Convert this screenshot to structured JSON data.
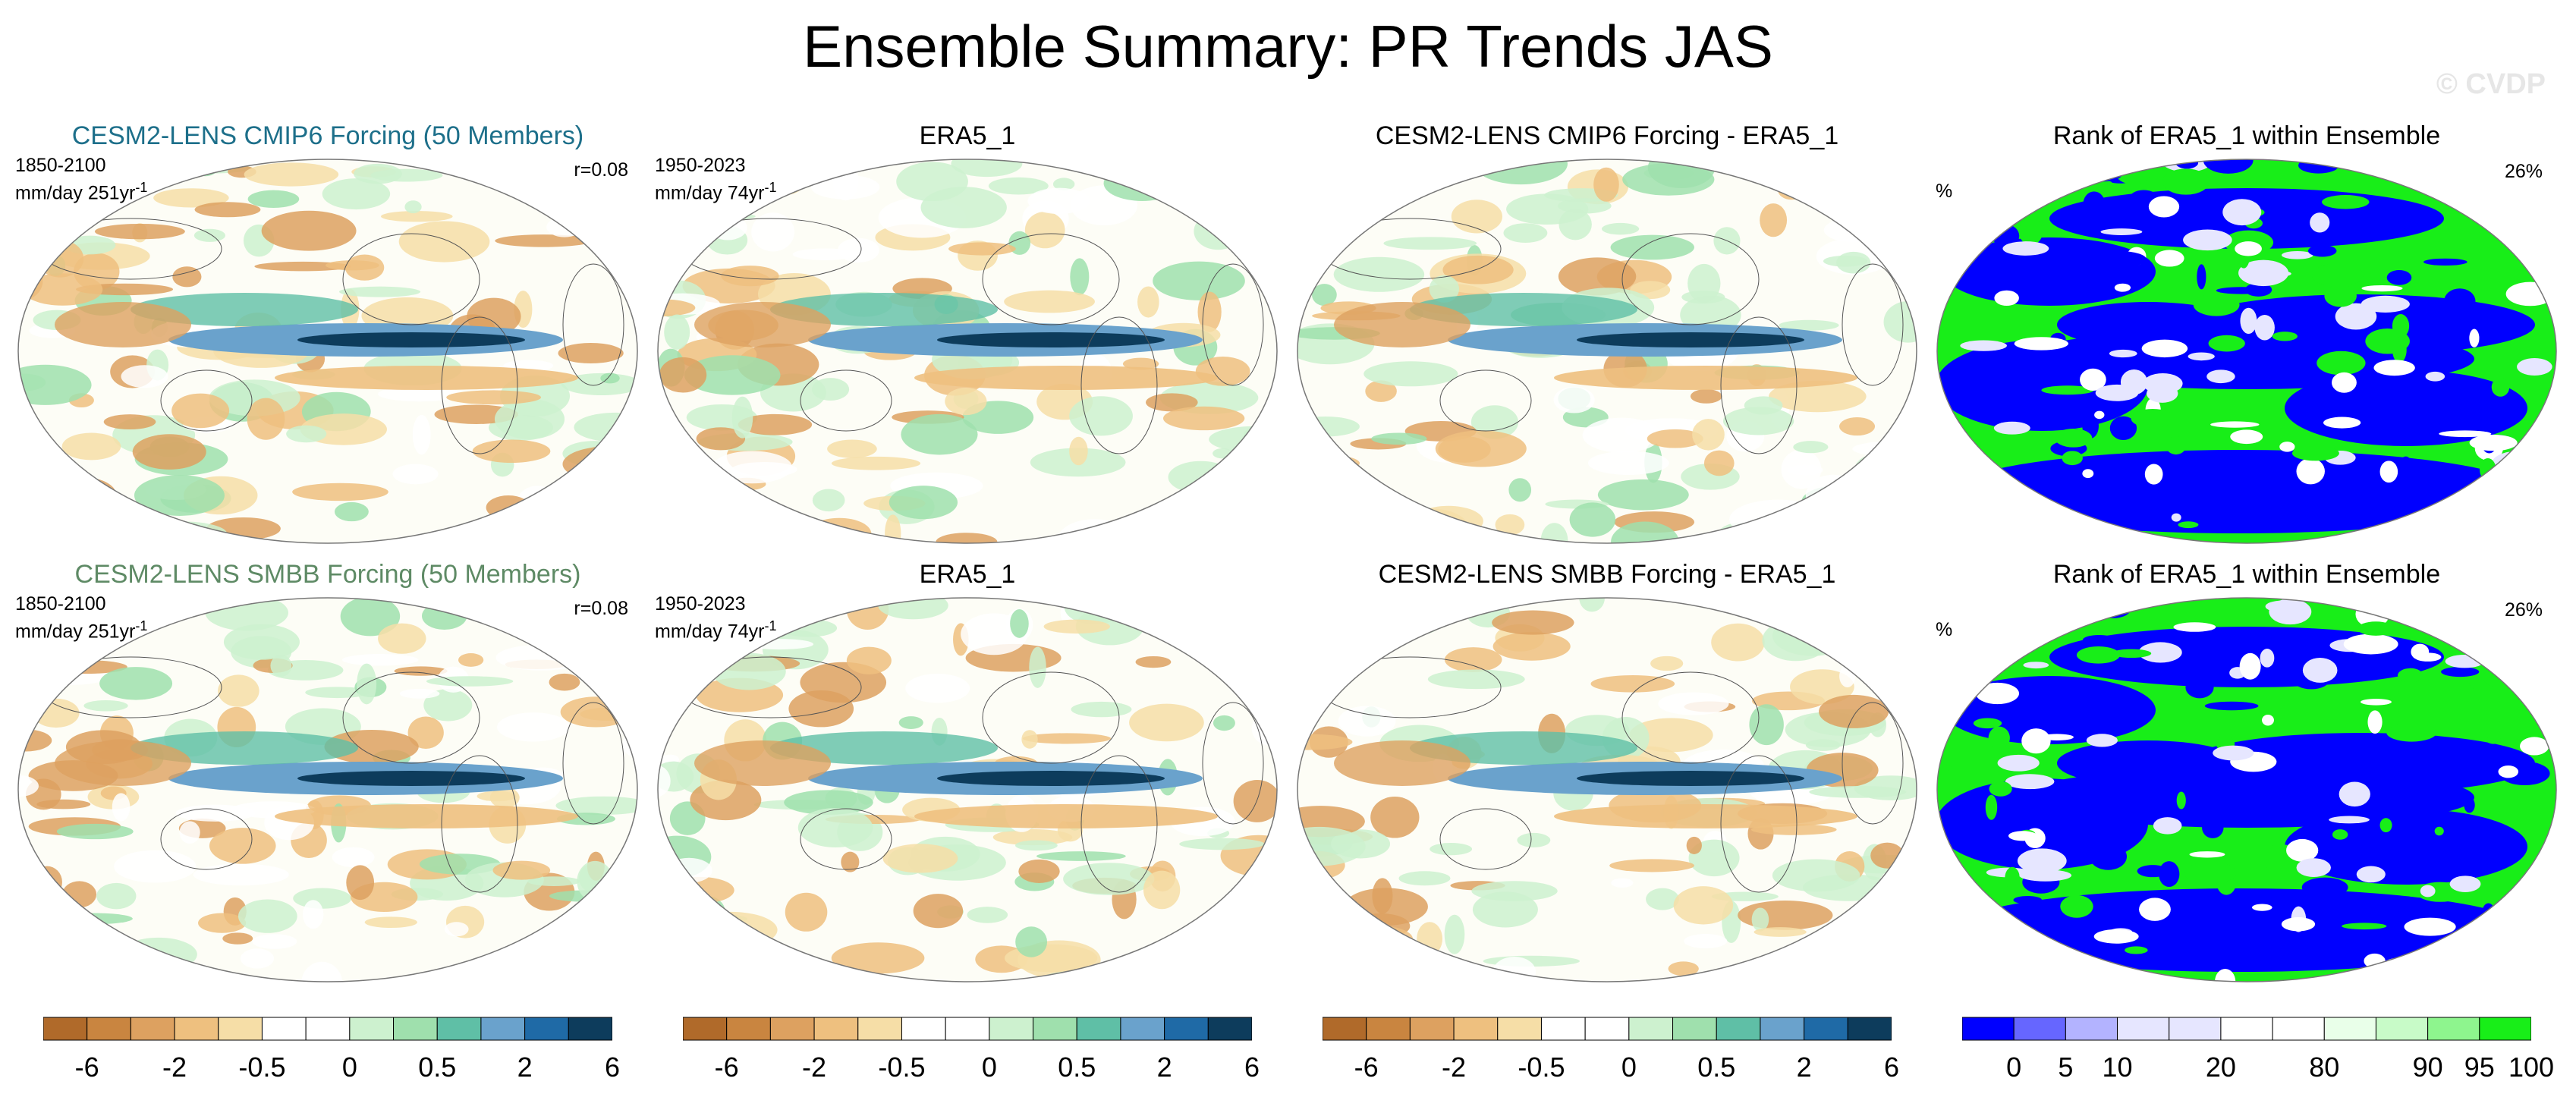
{
  "page": {
    "title": "Ensemble Summary: PR Trends JAS",
    "watermark": "© CVDP"
  },
  "rows": [
    {
      "panels": [
        {
          "title": "CESM2-LENS CMIP6 Forcing (50 Members)",
          "years": "1850-2100",
          "units": "mm/day 251yr",
          "units_sup": "-1",
          "corr": "r=0.08"
        },
        {
          "title": "ERA5_1",
          "years": "1950-2023",
          "units": "mm/day 74yr",
          "units_sup": "-1"
        },
        {
          "title": "CESM2-LENS CMIP6 Forcing - ERA5_1"
        },
        {
          "title": "Rank of ERA5_1 within Ensemble",
          "pct_symbol": "%",
          "pct_value": "26%"
        }
      ]
    },
    {
      "panels": [
        {
          "title": "CESM2-LENS SMBB Forcing (50 Members)",
          "years": "1850-2100",
          "units": "mm/day 251yr",
          "units_sup": "-1",
          "corr": "r=0.08"
        },
        {
          "title": "ERA5_1",
          "years": "1950-2023",
          "units": "mm/day 74yr",
          "units_sup": "-1"
        },
        {
          "title": "CESM2-LENS SMBB Forcing - ERA5_1"
        },
        {
          "title": "Rank of ERA5_1 within Ensemble",
          "pct_symbol": "%",
          "pct_value": "26%"
        }
      ]
    }
  ],
  "colorbars": {
    "trend": {
      "colors": [
        "#b06a2a",
        "#c98540",
        "#dda160",
        "#eec07f",
        "#f6dea7",
        "#ffffff",
        "#ffffff",
        "#cdf1cf",
        "#9fe0ad",
        "#5fbfa6",
        "#6aa2cc",
        "#1f6aa6",
        "#0d3c5c"
      ],
      "labels": [
        "-6",
        "-2",
        "-0.5",
        "0",
        "0.5",
        "2",
        "6"
      ],
      "label_positions": [
        1,
        3,
        5,
        7,
        9,
        11,
        13
      ]
    },
    "rank": {
      "colors": [
        "#0000ff",
        "#6666ff",
        "#b3b3ff",
        "#e6e6ff",
        "#e6e6ff",
        "#ffffff",
        "#ffffff",
        "#e9ffe9",
        "#c8fbc8",
        "#8ef58e",
        "#18ee18"
      ],
      "labels": [
        "0",
        "5",
        "10",
        "20",
        "80",
        "90",
        "95",
        "100"
      ],
      "label_positions": [
        1,
        2,
        3,
        5,
        7,
        9,
        10,
        11
      ]
    }
  }
}
